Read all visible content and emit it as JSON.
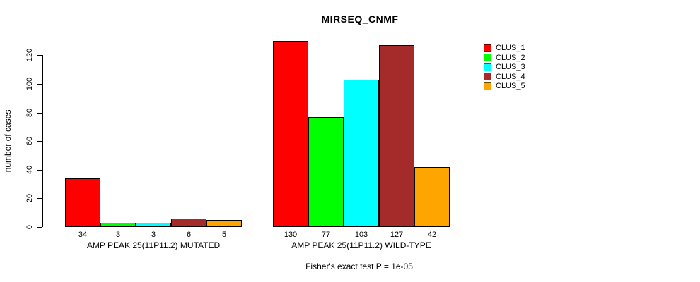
{
  "title": "MIRSEQ_CNMF",
  "footer": "Fisher's exact test P = 1e-05",
  "chart_data": {
    "type": "bar",
    "title": "MIRSEQ_CNMF",
    "xlabel": "",
    "ylabel": "number of cases",
    "ylim": [
      0,
      132
    ],
    "yticks": [
      0,
      20,
      40,
      60,
      80,
      100,
      120
    ],
    "grid": false,
    "bar_value_labels": true,
    "legend_position": "right",
    "categories": [
      "AMP PEAK 25(11P11.2) MUTATED",
      "AMP PEAK 25(11P11.2) WILD-TYPE"
    ],
    "series": [
      {
        "name": "CLUS_1",
        "color": "#ff0000",
        "values": [
          34,
          130
        ]
      },
      {
        "name": "CLUS_2",
        "color": "#00ff00",
        "values": [
          3,
          77
        ]
      },
      {
        "name": "CLUS_3",
        "color": "#00ffff",
        "values": [
          3,
          103
        ]
      },
      {
        "name": "CLUS_4",
        "color": "#a52a2a",
        "values": [
          6,
          127
        ]
      },
      {
        "name": "CLUS_5",
        "color": "#ffa500",
        "values": [
          5,
          42
        ]
      }
    ],
    "annotation": "Fisher's exact test P = 1e-05"
  }
}
